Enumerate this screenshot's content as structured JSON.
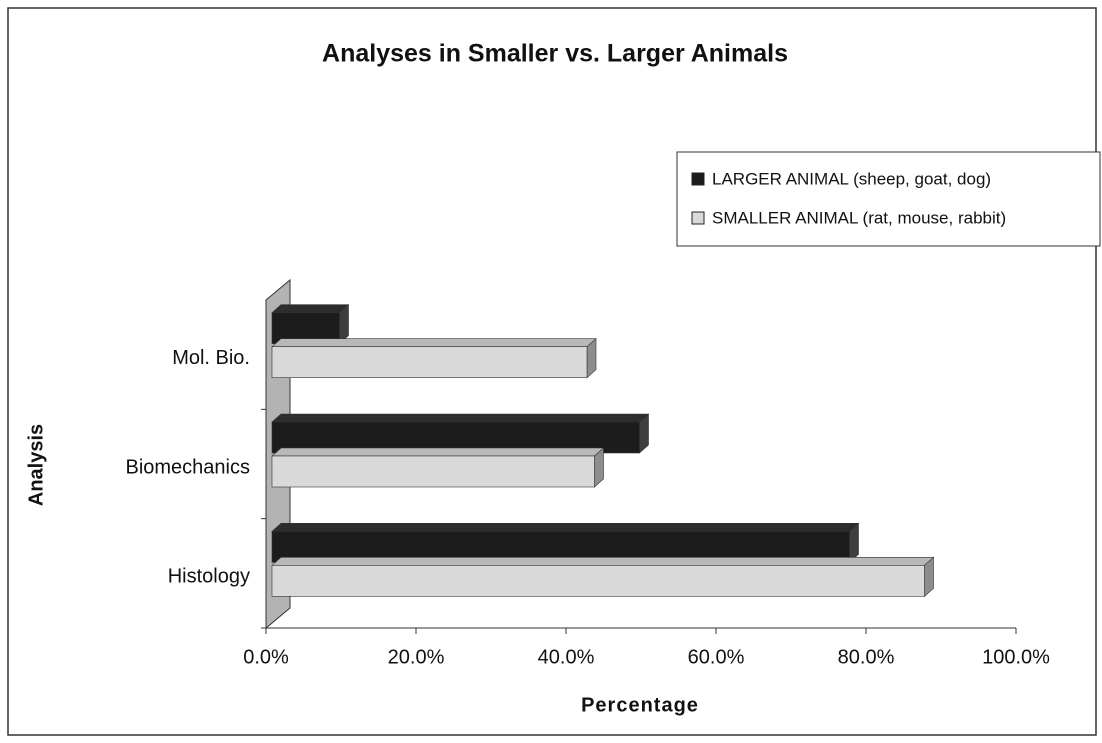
{
  "chart_data": {
    "type": "bar",
    "orientation": "horizontal",
    "title": "Analyses in Smaller vs. Larger Animals",
    "x_label": "Percentage",
    "y_label": "Analysis",
    "categories": [
      "Histology",
      "Biomechanics",
      "Mol. Bio."
    ],
    "series": [
      {
        "name": "LARGER ANIMAL (sheep, goat, dog)",
        "color": "#1c1c1c",
        "values": [
          77,
          49,
          9
        ]
      },
      {
        "name": "SMALLER ANIMAL (rat, mouse, rabbit)",
        "color": "#d9d9d9",
        "values": [
          87,
          43,
          42
        ]
      }
    ],
    "xlim": [
      0,
      100
    ],
    "xticks": [
      {
        "value": 0,
        "label": "0.0%"
      },
      {
        "value": 20,
        "label": "20.0%"
      },
      {
        "value": 40,
        "label": "40.0%"
      },
      {
        "value": 60,
        "label": "60.0%"
      },
      {
        "value": 80,
        "label": "80.0%"
      },
      {
        "value": 100,
        "label": "100.0%"
      }
    ],
    "legend": "upper right"
  }
}
